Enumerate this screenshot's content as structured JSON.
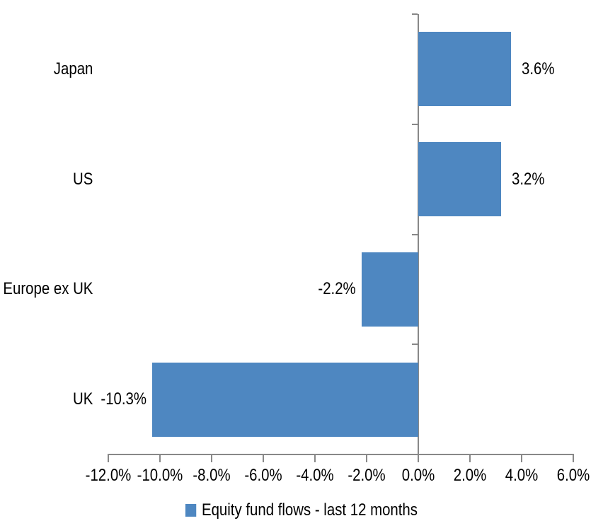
{
  "chart_data": {
    "type": "bar",
    "orientation": "horizontal",
    "title": "",
    "xlabel": "",
    "ylabel": "",
    "categories": [
      "Japan",
      "US",
      "Europe ex UK",
      "UK"
    ],
    "series": [
      {
        "name": "Equity fund flows - last 12 months",
        "values": [
          3.6,
          3.2,
          -2.2,
          -10.3
        ],
        "color": "#4E87C1"
      }
    ],
    "data_labels": [
      "3.6%",
      "3.2%",
      "-2.2%",
      "-10.3%"
    ],
    "x_axis": {
      "tick_labels": [
        "-12.0%",
        "-10.0%",
        "-8.0%",
        "-6.0%",
        "-4.0%",
        "-2.0%",
        "0.0%",
        "2.0%",
        "4.0%",
        "6.0%"
      ],
      "tick_values": [
        -12,
        -10,
        -8,
        -6,
        -4,
        -2,
        0,
        2,
        4,
        6
      ],
      "range": [
        -12,
        6
      ],
      "format": "percent"
    },
    "grid": false,
    "legend": {
      "position": "bottom",
      "entries": [
        {
          "label": "Equity fund flows - last 12 months",
          "color": "#4E87C1"
        }
      ]
    },
    "colors": {
      "bar": "#4E87C1",
      "axis": "#888888",
      "text": "#000000",
      "background": "#FFFFFF"
    }
  }
}
